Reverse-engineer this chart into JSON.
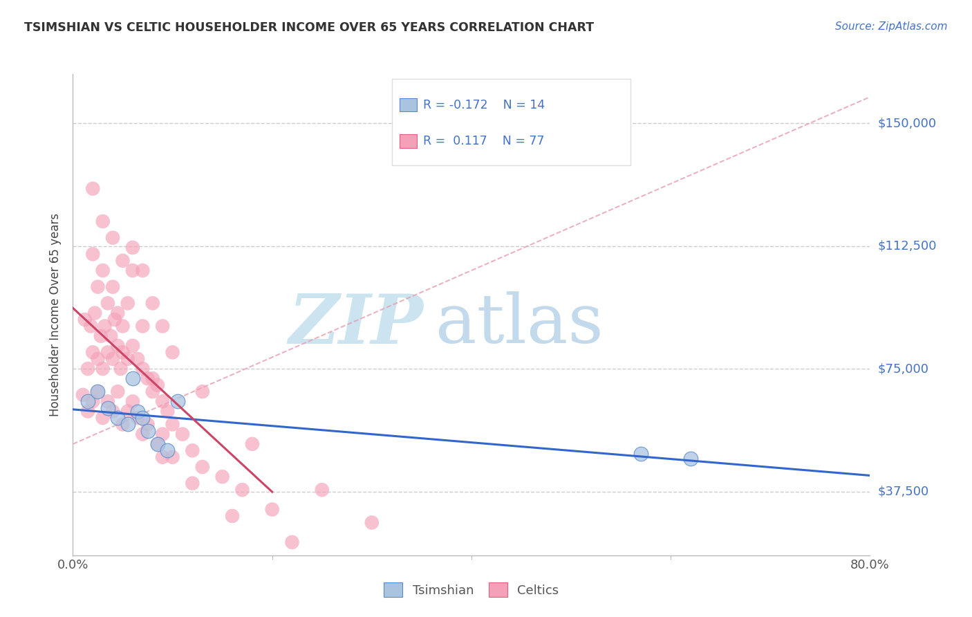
{
  "title": "TSIMSHIAN VS CELTIC HOUSEHOLDER INCOME OVER 65 YEARS CORRELATION CHART",
  "source_text": "Source: ZipAtlas.com",
  "ylabel": "Householder Income Over 65 years",
  "xlim": [
    0.0,
    80.0
  ],
  "ylim": [
    18000,
    165000
  ],
  "ytick_vals": [
    37500,
    75000,
    112500,
    150000
  ],
  "ytick_labels": [
    "$37,500",
    "$75,000",
    "$112,500",
    "$150,000"
  ],
  "tsimshian_color": "#aac4e0",
  "tsimshian_edge": "#5588cc",
  "celtic_color": "#f4a0b8",
  "celtic_edge": "#e06080",
  "tsimshian_line_color": "#3366cc",
  "celtic_line_color": "#cc4466",
  "dashed_line_color": "#e8a0b0",
  "background_color": "#ffffff",
  "grid_color": "#cccccc",
  "watermark_color": "#cce4f0",
  "tsimshian_x": [
    1.5,
    2.5,
    3.5,
    4.5,
    5.5,
    6.0,
    6.5,
    7.0,
    7.5,
    8.5,
    9.5,
    10.5,
    57.0,
    62.0
  ],
  "tsimshian_y": [
    65000,
    68000,
    63000,
    60000,
    58000,
    72000,
    62000,
    60000,
    56000,
    52000,
    50000,
    65000,
    49000,
    47500
  ],
  "celtic_x": [
    1.0,
    1.2,
    1.5,
    1.5,
    1.8,
    2.0,
    2.0,
    2.2,
    2.5,
    2.5,
    2.8,
    3.0,
    3.0,
    3.2,
    3.5,
    3.5,
    3.8,
    4.0,
    4.0,
    4.2,
    4.5,
    4.5,
    4.8,
    5.0,
    5.0,
    5.5,
    5.5,
    6.0,
    6.0,
    6.5,
    6.5,
    7.0,
    7.0,
    7.5,
    7.5,
    8.0,
    8.5,
    8.5,
    9.0,
    9.0,
    9.5,
    10.0,
    11.0,
    12.0,
    13.0,
    15.0,
    17.0,
    20.0,
    2.0,
    2.5,
    3.0,
    3.5,
    4.0,
    4.5,
    5.0,
    5.5,
    6.0,
    7.0,
    8.0,
    9.0,
    10.0,
    12.0,
    16.0,
    22.0,
    2.0,
    3.0,
    4.0,
    5.0,
    6.0,
    7.0,
    8.0,
    9.0,
    10.0,
    13.0,
    18.0,
    25.0,
    30.0
  ],
  "celtic_y": [
    67000,
    90000,
    75000,
    62000,
    88000,
    80000,
    65000,
    92000,
    78000,
    68000,
    85000,
    75000,
    60000,
    88000,
    80000,
    65000,
    85000,
    78000,
    62000,
    90000,
    82000,
    68000,
    75000,
    80000,
    58000,
    78000,
    62000,
    82000,
    65000,
    78000,
    60000,
    75000,
    55000,
    72000,
    58000,
    68000,
    70000,
    52000,
    65000,
    48000,
    62000,
    58000,
    55000,
    50000,
    45000,
    42000,
    38000,
    32000,
    110000,
    100000,
    105000,
    95000,
    100000,
    92000,
    88000,
    95000,
    105000,
    88000,
    72000,
    55000,
    48000,
    40000,
    30000,
    22000,
    130000,
    120000,
    115000,
    108000,
    112000,
    105000,
    95000,
    88000,
    80000,
    68000,
    52000,
    38000,
    28000
  ]
}
